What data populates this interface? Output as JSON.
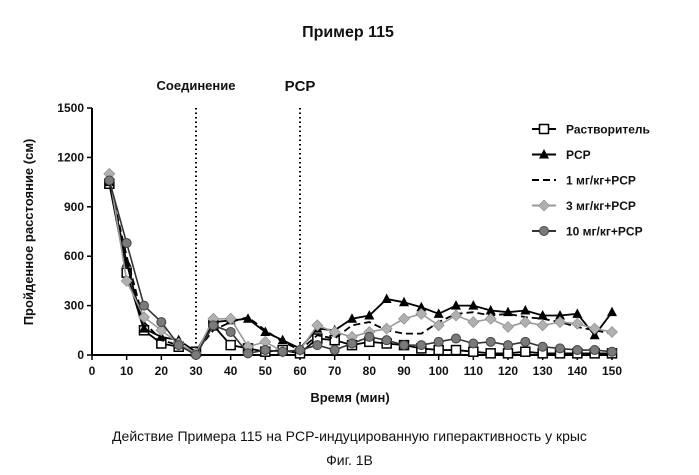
{
  "chart_data": {
    "type": "line",
    "title": "Пример 115",
    "xlabel": "Время (мин)",
    "ylabel": "Пройденное расстояние (см)",
    "xlim": [
      0,
      150
    ],
    "ylim": [
      0,
      1500
    ],
    "xticks": [
      "0",
      "10",
      "20",
      "30",
      "40",
      "50",
      "60",
      "70",
      "80",
      "90",
      "100",
      "110",
      "120",
      "130",
      "140",
      "150"
    ],
    "yticks": [
      "0",
      "300",
      "600",
      "900",
      "1200",
      "1500"
    ],
    "grid": false,
    "legend_position": "right",
    "annotations": [
      {
        "text": "Соединение",
        "x": 30
      },
      {
        "text": "PCP",
        "x": 60
      }
    ],
    "x": [
      5,
      10,
      15,
      20,
      25,
      30,
      35,
      40,
      45,
      50,
      55,
      60,
      65,
      70,
      75,
      80,
      85,
      90,
      95,
      100,
      105,
      110,
      115,
      120,
      125,
      130,
      135,
      140,
      145,
      150
    ],
    "series": [
      {
        "name": "Растворитель",
        "color": "#000000",
        "values": [
          1040,
          500,
          150,
          70,
          50,
          20,
          180,
          60,
          40,
          20,
          30,
          10,
          100,
          90,
          60,
          80,
          70,
          60,
          40,
          30,
          30,
          20,
          10,
          10,
          20,
          10,
          10,
          10,
          10,
          10
        ]
      },
      {
        "name": "PCP",
        "color": "#000000",
        "values": [
          1050,
          560,
          160,
          110,
          90,
          20,
          200,
          210,
          220,
          140,
          90,
          40,
          160,
          150,
          220,
          240,
          340,
          320,
          290,
          250,
          300,
          300,
          270,
          260,
          270,
          240,
          240,
          250,
          120,
          260
        ]
      },
      {
        "name": "1 мг/кг+PCP",
        "color": "#000000",
        "values": [
          1050,
          600,
          200,
          90,
          60,
          20,
          150,
          200,
          230,
          150,
          80,
          30,
          120,
          100,
          180,
          200,
          150,
          130,
          130,
          200,
          250,
          260,
          240,
          250,
          230,
          220,
          200,
          170,
          150,
          130
        ]
      },
      {
        "name": "3 мг/кг+PCP",
        "color": "#aaaaaa",
        "values": [
          1100,
          450,
          230,
          150,
          70,
          10,
          220,
          220,
          50,
          80,
          20,
          30,
          180,
          140,
          110,
          140,
          160,
          220,
          250,
          180,
          240,
          200,
          220,
          170,
          200,
          180,
          200,
          190,
          160,
          140
        ]
      },
      {
        "name": "10 мг/кг+PCP",
        "color": "#777777",
        "values": [
          1060,
          680,
          300,
          200,
          60,
          0,
          180,
          140,
          10,
          30,
          20,
          30,
          60,
          30,
          70,
          110,
          90,
          60,
          60,
          80,
          100,
          70,
          80,
          60,
          80,
          50,
          40,
          30,
          30,
          20
        ]
      }
    ]
  },
  "caption": {
    "line1": "Действие Примера 115 на PCP-индуцированную гиперактивность у крыс",
    "line2": "Фиг. 1B"
  }
}
